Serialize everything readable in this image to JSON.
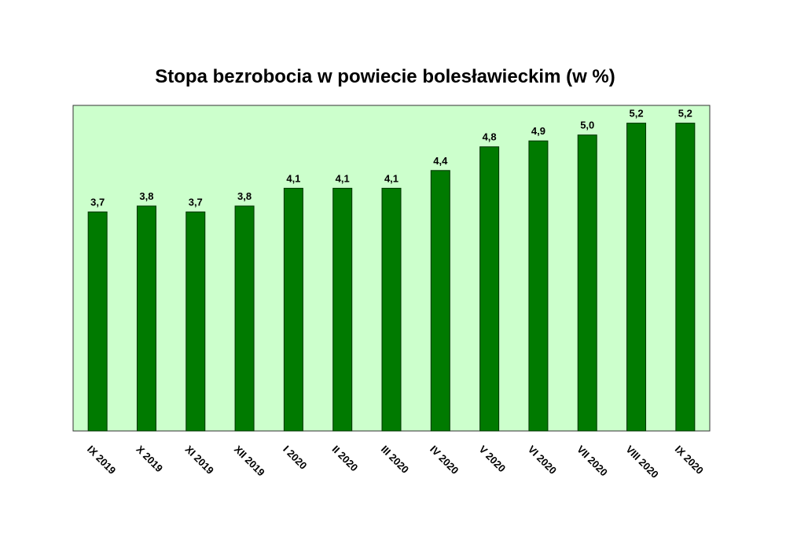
{
  "chart_data": {
    "type": "bar",
    "title": "Stopa bezrobocia w powiecie bolesławieckim (w %)",
    "xlabel": "",
    "ylabel": "",
    "categories": [
      "IX 2019",
      "X 2019",
      "XI 2019",
      "XII 2019",
      "I 2020",
      "II 2020",
      "III 2020",
      "IV 2020",
      "V 2020",
      "VI 2020",
      "VII 2020",
      "VIII 2020",
      "IX 2020"
    ],
    "values": [
      3.7,
      3.8,
      3.7,
      3.8,
      4.1,
      4.1,
      4.1,
      4.4,
      4.8,
      4.9,
      5.0,
      5.2,
      5.2
    ],
    "data_labels": [
      "3,7",
      "3,8",
      "3,7",
      "3,8",
      "4,1",
      "4,1",
      "4,1",
      "4,4",
      "4,8",
      "4,9",
      "5,0",
      "5,2",
      "5,2"
    ],
    "ylim": [
      0,
      5.5
    ],
    "grid": false,
    "legend": "none",
    "colors": {
      "bar": "#007a00",
      "bar_outline": "#003300",
      "plot_background": "#ccffcc",
      "plot_border": "#333333"
    }
  }
}
